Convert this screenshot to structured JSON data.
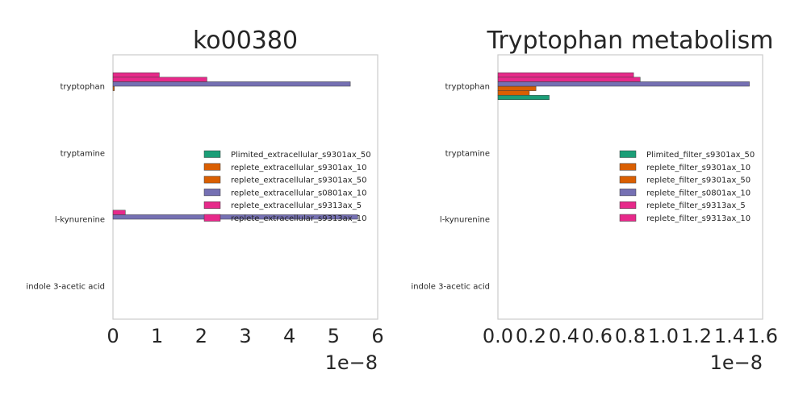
{
  "chart_data": [
    {
      "type": "bar",
      "orientation": "horizontal",
      "title": "ko00380",
      "categories": [
        "tryptophan",
        "tryptamine",
        "l-kynurenine",
        "indole 3-acetic acid"
      ],
      "series": [
        {
          "name": "Plimited_extracellular_s9301ax_50",
          "color": "#1b9e77",
          "values": [
            0,
            0,
            0,
            0
          ]
        },
        {
          "name": "replete_extracellular_s9301ax_10",
          "color": "#d95f02",
          "values": [
            0,
            0,
            0,
            0
          ]
        },
        {
          "name": "replete_extracellular_s9301ax_50",
          "color": "#d95f02",
          "values": [
            0.03,
            0,
            0,
            0
          ]
        },
        {
          "name": "replete_extracellular_s0801ax_10",
          "color": "#7570b3",
          "values": [
            5.38,
            0,
            5.55,
            0
          ]
        },
        {
          "name": "replete_extracellular_s9313ax_5",
          "color": "#e7298a",
          "values": [
            2.13,
            0,
            0.28,
            0
          ]
        },
        {
          "name": "replete_extracellular_s9313ax_10",
          "color": "#e7298a",
          "values": [
            1.05,
            0,
            0,
            0
          ]
        }
      ],
      "xlim": [
        0,
        6
      ],
      "xticks": [
        "0",
        "1",
        "2",
        "3",
        "4",
        "5",
        "6"
      ],
      "offset_text": "1e−8",
      "grid": false,
      "legend_position": "center-right"
    },
    {
      "type": "bar",
      "orientation": "horizontal",
      "title": "Tryptophan metabolism",
      "categories": [
        "tryptophan",
        "tryptamine",
        "l-kynurenine",
        "indole 3-acetic acid"
      ],
      "series": [
        {
          "name": "Plimited_filter_s9301ax_50",
          "color": "#1b9e77",
          "values": [
            0.31,
            0,
            0,
            0
          ]
        },
        {
          "name": "replete_filter_s9301ax_10",
          "color": "#d95f02",
          "values": [
            0.19,
            0,
            0,
            0
          ]
        },
        {
          "name": "replete_filter_s9301ax_50",
          "color": "#d95f02",
          "values": [
            0.23,
            0,
            0,
            0
          ]
        },
        {
          "name": "replete_filter_s0801ax_10",
          "color": "#7570b3",
          "values": [
            1.52,
            0,
            0,
            0
          ]
        },
        {
          "name": "replete_filter_s9313ax_5",
          "color": "#e7298a",
          "values": [
            0.86,
            0,
            0,
            0
          ]
        },
        {
          "name": "replete_filter_s9313ax_10",
          "color": "#e7298a",
          "values": [
            0.82,
            0,
            0,
            0
          ]
        }
      ],
      "xlim": [
        0,
        1.6
      ],
      "xticks": [
        "0.0",
        "0.2",
        "0.4",
        "0.6",
        "0.8",
        "1.0",
        "1.2",
        "1.4",
        "1.6"
      ],
      "offset_text": "1e−8",
      "grid": false,
      "legend_position": "center-right"
    }
  ]
}
